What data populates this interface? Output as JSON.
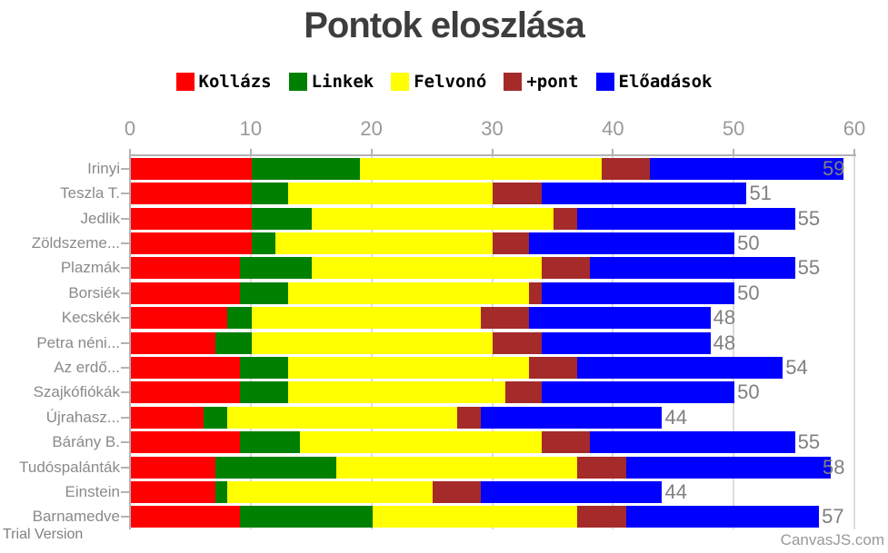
{
  "title": "Pontok eloszlása",
  "watermarks": {
    "trial": "Trial Version",
    "brand": "CanvasJS.com"
  },
  "chart_data": {
    "type": "bar",
    "orientation": "horizontal",
    "stacked": true,
    "title": "Pontok eloszlása",
    "legend_position": "top",
    "grid": true,
    "value_axis": {
      "min": 0,
      "max": 60,
      "position": "top",
      "ticks": [
        "0",
        "10",
        "20",
        "30",
        "40",
        "50",
        "60"
      ],
      "tick_values": [
        0,
        10,
        20,
        30,
        40,
        50,
        60
      ]
    },
    "categories": [
      "Irinyi",
      "Teszla T.",
      "Jedlik",
      "Zöldszeme...",
      "Plazmák",
      "Borsiék",
      "Kecskék",
      "Petra néni...",
      "Az erdő...",
      "Szajkófiókák",
      "Újrahasz...",
      "Bárány B.",
      "Tudóspalánták",
      "Einstein",
      "Barnamedve"
    ],
    "series": [
      {
        "name": "Kollázs",
        "color": "#ff0000",
        "values": [
          10,
          10,
          10,
          10,
          9,
          9,
          8,
          7,
          9,
          9,
          6,
          9,
          7,
          7,
          9
        ]
      },
      {
        "name": "Linkek",
        "color": "#008000",
        "values": [
          9,
          3,
          5,
          2,
          6,
          4,
          2,
          3,
          4,
          4,
          2,
          5,
          10,
          1,
          11
        ]
      },
      {
        "name": "Felvonó",
        "color": "#ffff00",
        "values": [
          20,
          17,
          20,
          18,
          19,
          20,
          19,
          20,
          20,
          18,
          19,
          20,
          20,
          17,
          17
        ]
      },
      {
        "name": "+pont",
        "color": "#a52a2a",
        "values": [
          4,
          4,
          2,
          3,
          4,
          1,
          4,
          4,
          4,
          3,
          2,
          4,
          4,
          4,
          4
        ]
      },
      {
        "name": "Előadások",
        "color": "#0000ff",
        "values": [
          16,
          17,
          18,
          17,
          17,
          16,
          15,
          14,
          17,
          16,
          15,
          17,
          17,
          15,
          16
        ]
      }
    ],
    "totals": [
      59,
      51,
      55,
      50,
      55,
      50,
      48,
      48,
      54,
      50,
      44,
      55,
      58,
      44,
      57
    ]
  },
  "colors": {
    "title": "#3d3d3d",
    "axis_labels": "#999999",
    "category_labels": "#8a8a8a",
    "total_labels": "#808080",
    "gridline": "#dcdcdc",
    "axis_line": "#b3b3b3"
  }
}
